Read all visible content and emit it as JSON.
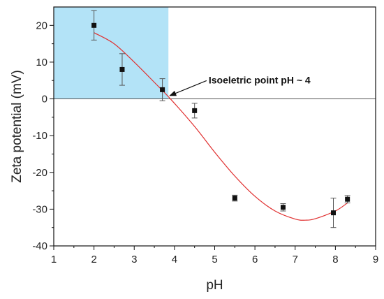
{
  "chart_data": {
    "type": "scatter",
    "xlabel": "pH",
    "ylabel": "Zeta potential (mV)",
    "xlim": [
      1,
      9
    ],
    "ylim": [
      -40,
      25
    ],
    "xticks": [
      1,
      2,
      3,
      4,
      5,
      6,
      7,
      8,
      9
    ],
    "yticks": [
      -40,
      -30,
      -20,
      -10,
      0,
      10,
      20
    ],
    "grid": false,
    "zero_line": true,
    "highlight_region": {
      "x": [
        1,
        3.85
      ],
      "y": [
        0,
        25
      ],
      "color": "#b3e3f7"
    },
    "series": [
      {
        "type": "scatter",
        "color": "#111111",
        "points": [
          {
            "x": 2.0,
            "y": 20.0,
            "err": 4.0
          },
          {
            "x": 2.7,
            "y": 8.0,
            "err": 4.3
          },
          {
            "x": 3.7,
            "y": 2.5,
            "err": 3.0
          },
          {
            "x": 4.5,
            "y": -3.2,
            "err": 2.0
          },
          {
            "x": 5.5,
            "y": -27.0,
            "err": 0.8
          },
          {
            "x": 6.7,
            "y": -29.5,
            "err": 1.0
          },
          {
            "x": 7.95,
            "y": -31.0,
            "err": 4.0
          },
          {
            "x": 8.3,
            "y": -27.3,
            "err": 1.0
          }
        ]
      },
      {
        "type": "line",
        "color": "#e03030",
        "points": [
          {
            "x": 2.0,
            "y": 18.0
          },
          {
            "x": 2.5,
            "y": 15.0
          },
          {
            "x": 3.0,
            "y": 10.0
          },
          {
            "x": 3.5,
            "y": 4.5
          },
          {
            "x": 3.9,
            "y": 0.0
          },
          {
            "x": 4.5,
            "y": -7.5
          },
          {
            "x": 5.0,
            "y": -14.5
          },
          {
            "x": 5.5,
            "y": -21.0
          },
          {
            "x": 6.0,
            "y": -26.5
          },
          {
            "x": 6.5,
            "y": -30.5
          },
          {
            "x": 7.0,
            "y": -32.7
          },
          {
            "x": 7.25,
            "y": -33.0
          },
          {
            "x": 7.5,
            "y": -32.6
          },
          {
            "x": 8.0,
            "y": -30.5
          },
          {
            "x": 8.3,
            "y": -28.3
          }
        ]
      }
    ],
    "annotation": {
      "text": "Isoeletric point pH ~ 4",
      "arrow_to": {
        "x": 3.85,
        "y": 0.5
      },
      "text_at": {
        "x": 4.85,
        "y": 4
      }
    }
  }
}
